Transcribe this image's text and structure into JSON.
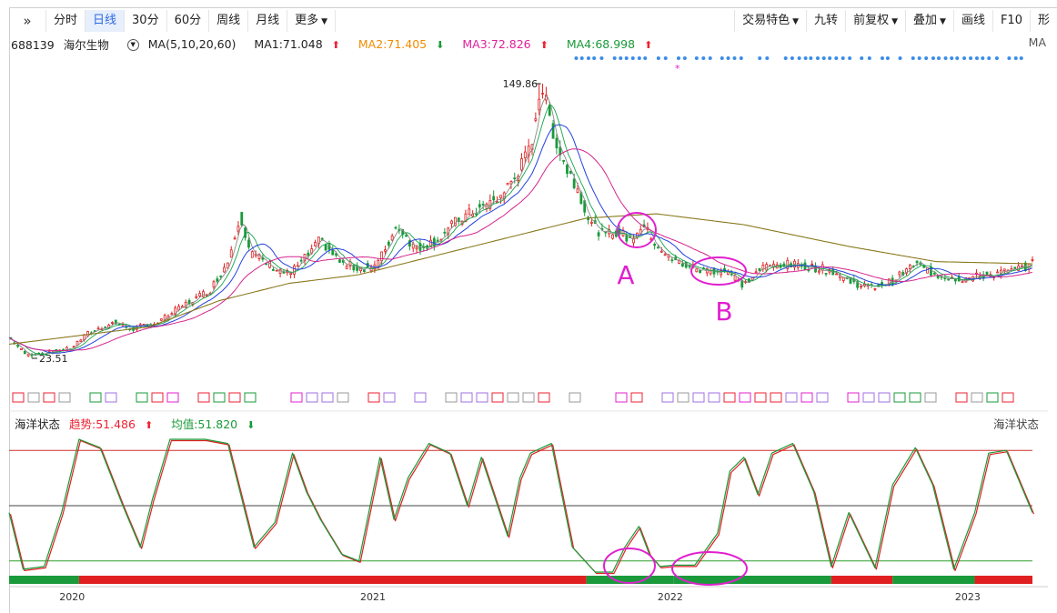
{
  "toolbar": {
    "left": [
      "分时",
      "日线",
      "30分",
      "60分",
      "周线",
      "月线",
      "更多"
    ],
    "active": "日线",
    "right": [
      "交易特色",
      "九转",
      "前复权",
      "叠加",
      "画线",
      "F10",
      "形"
    ]
  },
  "stock": {
    "code": "688139",
    "name": "海尔生物"
  },
  "ma": {
    "label": "MA(5,10,20,60)",
    "values": [
      {
        "text": "MA1:71.048",
        "color": "#222222",
        "dir": "up"
      },
      {
        "text": "MA2:71.405",
        "color": "#f08c00",
        "dir": "down"
      },
      {
        "text": "MA3:72.826",
        "color": "#e0209a",
        "dir": "up"
      },
      {
        "text": "MA4:68.998",
        "color": "#1a9a3a",
        "dir": "up"
      }
    ],
    "right": "MA"
  },
  "oscillator": {
    "name": "海洋状态",
    "trend": "趋势:51.486",
    "avg": "均值:51.820",
    "right": "海洋状态"
  },
  "annotations": {
    "a": "A",
    "b": "B"
  },
  "colors": {
    "ma1": "#8a8a8a",
    "ma2": "#16a34a",
    "ma3": "#2340e0",
    "ma4": "#d6248c",
    "ma60": "#8a7a1e",
    "up": "#e02020",
    "down": "#1a9a3a",
    "annotation": "#e020d0"
  },
  "chart_data": [
    {
      "type": "candlestick",
      "title": "688139 海尔生物",
      "x_labels": [
        "2020",
        "2021",
        "2022",
        "2023"
      ],
      "price_labels": {
        "high": "149.86",
        "low": "23.51"
      },
      "high": 149.86,
      "low": 23.51,
      "close_path": [
        [
          0,
          33
        ],
        [
          10,
          25
        ],
        [
          20,
          26
        ],
        [
          35,
          28
        ],
        [
          45,
          35
        ],
        [
          60,
          40
        ],
        [
          70,
          37
        ],
        [
          85,
          40
        ],
        [
          100,
          48
        ],
        [
          115,
          55
        ],
        [
          125,
          68
        ],
        [
          132,
          90
        ],
        [
          138,
          72
        ],
        [
          150,
          66
        ],
        [
          160,
          62
        ],
        [
          172,
          72
        ],
        [
          178,
          78
        ],
        [
          190,
          67
        ],
        [
          200,
          65
        ],
        [
          210,
          66
        ],
        [
          222,
          85
        ],
        [
          232,
          74
        ],
        [
          245,
          78
        ],
        [
          255,
          86
        ],
        [
          268,
          92
        ],
        [
          280,
          97
        ],
        [
          290,
          108
        ],
        [
          298,
          120
        ],
        [
          304,
          149.86
        ],
        [
          312,
          125
        ],
        [
          318,
          112
        ],
        [
          326,
          100
        ],
        [
          332,
          86
        ],
        [
          340,
          80
        ],
        [
          348,
          82
        ],
        [
          355,
          78
        ],
        [
          362,
          85
        ],
        [
          368,
          78
        ],
        [
          378,
          69
        ],
        [
          395,
          64
        ],
        [
          410,
          64
        ],
        [
          420,
          57
        ],
        [
          430,
          65
        ],
        [
          440,
          67
        ],
        [
          455,
          66
        ],
        [
          470,
          64
        ],
        [
          480,
          59
        ],
        [
          492,
          56
        ],
        [
          505,
          59
        ],
        [
          518,
          67
        ],
        [
          530,
          62
        ],
        [
          545,
          60
        ],
        [
          560,
          62
        ],
        [
          575,
          64
        ],
        [
          585,
          67
        ]
      ],
      "ma60_path": [
        [
          0,
          30
        ],
        [
          40,
          34
        ],
        [
          80,
          38
        ],
        [
          120,
          50
        ],
        [
          160,
          58
        ],
        [
          200,
          62
        ],
        [
          240,
          70
        ],
        [
          290,
          80
        ],
        [
          330,
          88
        ],
        [
          370,
          90
        ],
        [
          420,
          85
        ],
        [
          480,
          75
        ],
        [
          530,
          68
        ],
        [
          585,
          67
        ]
      ]
    },
    {
      "type": "line",
      "title": "海洋状态",
      "ylim": [
        0,
        100
      ],
      "reference_lines": [
        90,
        50,
        10
      ],
      "points": [
        [
          0,
          45
        ],
        [
          8,
          4
        ],
        [
          20,
          6
        ],
        [
          30,
          45
        ],
        [
          40,
          98
        ],
        [
          52,
          92
        ],
        [
          65,
          50
        ],
        [
          75,
          20
        ],
        [
          82,
          55
        ],
        [
          92,
          98
        ],
        [
          112,
          98
        ],
        [
          125,
          95
        ],
        [
          140,
          20
        ],
        [
          152,
          38
        ],
        [
          162,
          88
        ],
        [
          170,
          60
        ],
        [
          178,
          40
        ],
        [
          190,
          15
        ],
        [
          200,
          10
        ],
        [
          212,
          85
        ],
        [
          220,
          40
        ],
        [
          228,
          70
        ],
        [
          240,
          95
        ],
        [
          252,
          88
        ],
        [
          262,
          50
        ],
        [
          270,
          85
        ],
        [
          285,
          28
        ],
        [
          292,
          70
        ],
        [
          298,
          88
        ],
        [
          310,
          95
        ],
        [
          322,
          20
        ],
        [
          335,
          2
        ],
        [
          345,
          2
        ],
        [
          352,
          20
        ],
        [
          360,
          35
        ],
        [
          366,
          15
        ],
        [
          372,
          6
        ],
        [
          380,
          7
        ],
        [
          392,
          7
        ],
        [
          405,
          30
        ],
        [
          412,
          75
        ],
        [
          420,
          85
        ],
        [
          428,
          58
        ],
        [
          436,
          88
        ],
        [
          448,
          95
        ],
        [
          460,
          60
        ],
        [
          470,
          6
        ],
        [
          480,
          45
        ],
        [
          495,
          5
        ],
        [
          505,
          65
        ],
        [
          518,
          92
        ],
        [
          528,
          65
        ],
        [
          540,
          4
        ],
        [
          552,
          45
        ],
        [
          560,
          88
        ],
        [
          570,
          90
        ],
        [
          585,
          45
        ]
      ]
    }
  ]
}
